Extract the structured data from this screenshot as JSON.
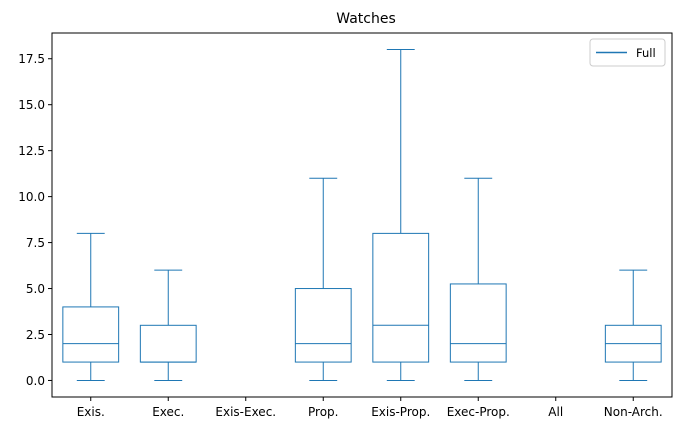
{
  "chart_data": {
    "type": "boxplot",
    "title": "Watches",
    "xlabel": "",
    "ylabel": "",
    "ylim": [
      -0.9,
      18.9
    ],
    "yticks": [
      0.0,
      2.5,
      5.0,
      7.5,
      10.0,
      12.5,
      15.0,
      17.5
    ],
    "ytick_labels": [
      "0.0",
      "2.5",
      "5.0",
      "7.5",
      "10.0",
      "12.5",
      "15.0",
      "17.5"
    ],
    "categories": [
      "Exis.",
      "Exec.",
      "Exis-Exec.",
      "Prop.",
      "Exis-Prop.",
      "Exec-Prop.",
      "All",
      "Non-Arch."
    ],
    "series": [
      {
        "name": "Full",
        "color": "#1f77b4",
        "boxes": [
          {
            "whislo": 0,
            "q1": 1,
            "med": 2,
            "q3": 4,
            "whishi": 8
          },
          {
            "whislo": 0,
            "q1": 1,
            "med": 1,
            "q3": 3,
            "whishi": 6
          },
          null,
          {
            "whislo": 0,
            "q1": 1,
            "med": 2,
            "q3": 5,
            "whishi": 11
          },
          {
            "whislo": 0,
            "q1": 1,
            "med": 3,
            "q3": 8,
            "whishi": 18
          },
          {
            "whislo": 0,
            "q1": 1,
            "med": 2,
            "q3": 5.25,
            "whishi": 11
          },
          null,
          {
            "whislo": 0,
            "q1": 1,
            "med": 2,
            "q3": 3,
            "whishi": 6
          }
        ]
      }
    ],
    "legend": {
      "position": "top-right",
      "entries": [
        "Full"
      ]
    },
    "grid": false
  }
}
